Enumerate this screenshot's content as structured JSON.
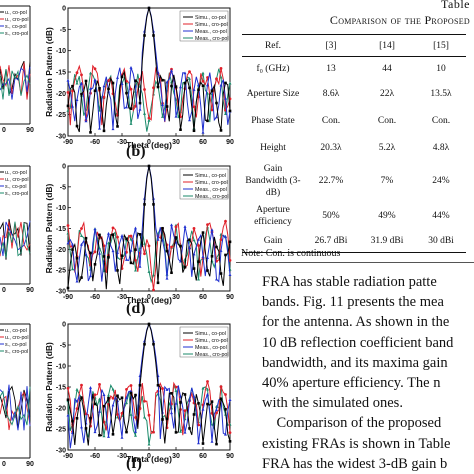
{
  "colors": {
    "simu_co": "#000000",
    "simu_cro": "#e0202a",
    "meas_co": "#1f2fd0",
    "meas_cro": "#1a8a6a"
  },
  "plots": {
    "ylabel": "Radiation Pattern (dB)",
    "xlabel": "Theta (deg)",
    "xticks": [
      "-90",
      "-60",
      "-30",
      "0",
      "30",
      "60",
      "90"
    ],
    "yticks": [
      "0",
      "-5",
      "-10",
      "-15",
      "-20",
      "-25",
      "-30"
    ],
    "legend": [
      "Simu., co-pol",
      "Simu., cro-pol",
      "Meas., co-pol",
      "Meas., cro-pol"
    ],
    "labels": {
      "b": "(b)",
      "d": "(d)",
      "f": "(f)"
    },
    "left_xticks": [
      "0",
      "90"
    ]
  },
  "chart_data": {
    "type": "line",
    "xlabel": "Theta (deg)",
    "ylabel": "Radiation Pattern (dB)",
    "xlim": [
      -90,
      90
    ],
    "ylim": [
      -30,
      0
    ],
    "series": [
      {
        "name": "Simu., co-pol"
      },
      {
        "name": "Simu., cro-pol"
      },
      {
        "name": "Meas., co-pol"
      },
      {
        "name": "Meas., cro-pol"
      }
    ]
  },
  "table": {
    "caption_prefix": "Table",
    "caption_title": "Comparison of the Proposed",
    "header": [
      "Ref.",
      "[3]",
      "[14]",
      "[15]"
    ],
    "rows": [
      [
        "f₀ (GHz)",
        "13",
        "44",
        "10"
      ],
      [
        "Aperture Size",
        "8.6λ",
        "22λ",
        "13.5λ"
      ],
      [
        "Phase State",
        "Con.",
        "Con.",
        "Con."
      ],
      [
        "Height",
        "20.3λ",
        "5.2λ",
        "4.8λ"
      ],
      [
        "Gain Bandwidth (3-dB)",
        "22.7%",
        "7%",
        "24%"
      ],
      [
        "Aperture efficiency",
        "50%",
        "49%",
        "44%"
      ],
      [
        "Gain",
        "26.7 dBi",
        "31.9 dBi",
        "30 dBi"
      ]
    ],
    "note": "Note: Con. is continuous"
  },
  "body_text": [
    "FRA has stable radiation patte",
    "bands. Fig. 11 presents the mea",
    "for the antenna. As shown in the",
    "10 dB reflection coefficient band",
    "bandwidth, and its maxima gain",
    "40% aperture efficiency. The n",
    "with the simulated ones.",
    "    Comparison of the proposed",
    "existing FRAs is shown in Table",
    "FRA has the widest 3-dB gain b"
  ]
}
